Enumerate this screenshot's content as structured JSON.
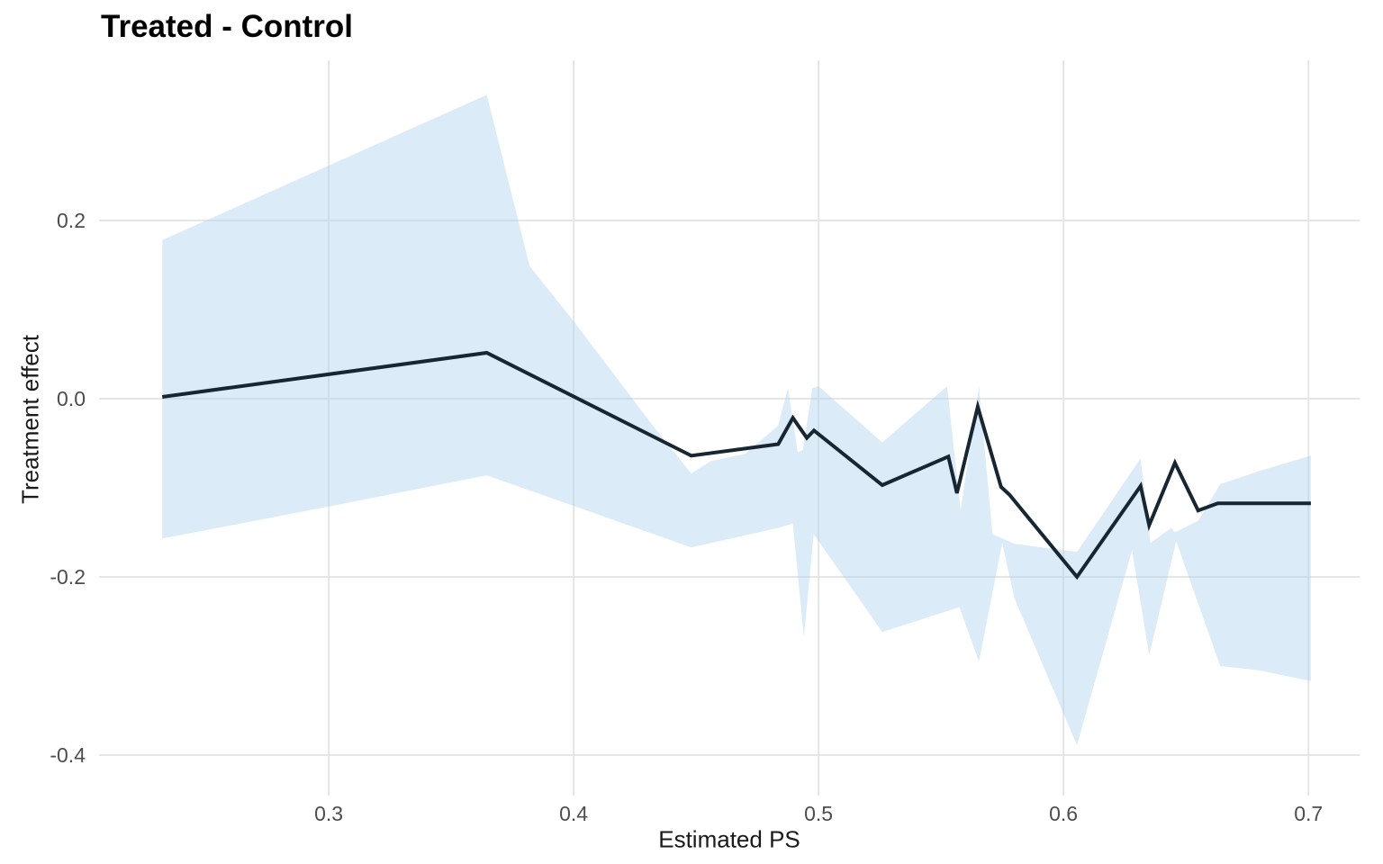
{
  "chart_data": {
    "type": "line",
    "title": "Treated - Control",
    "xlabel": "Estimated PS",
    "ylabel": "Treatment effect",
    "legend": "none",
    "grid": "major-only",
    "xlim": [
      0.2062,
      0.7209
    ],
    "ylim": [
      -0.4455,
      0.3798
    ],
    "x_ticks": {
      "values": [
        0.3,
        0.4,
        0.5,
        0.6,
        0.7
      ],
      "labels": [
        "0.3",
        "0.4",
        "0.5",
        "0.6",
        "0.7"
      ]
    },
    "y_ticks": {
      "values": [
        0.2,
        0.0,
        -0.2,
        -0.4
      ],
      "labels": [
        "0.2",
        "0.0",
        "-0.2",
        "-0.4"
      ]
    },
    "series": [
      {
        "name": "treatment-effect-estimate",
        "type": "line",
        "points": [
          [
            0.232,
            0.002
          ],
          [
            0.3645,
            0.0515
          ],
          [
            0.448,
            -0.064
          ],
          [
            0.4835,
            -0.051
          ],
          [
            0.4895,
            -0.0215
          ],
          [
            0.4952,
            -0.0441
          ],
          [
            0.4981,
            -0.0357
          ],
          [
            0.526,
            -0.097
          ],
          [
            0.553,
            -0.065
          ],
          [
            0.5565,
            -0.106
          ],
          [
            0.565,
            -0.009
          ],
          [
            0.5745,
            -0.099
          ],
          [
            0.578,
            -0.108
          ],
          [
            0.6055,
            -0.2
          ],
          [
            0.6315,
            -0.098
          ],
          [
            0.635,
            -0.142
          ],
          [
            0.6455,
            -0.072
          ],
          [
            0.655,
            -0.1255
          ],
          [
            0.663,
            -0.1175
          ],
          [
            0.701,
            -0.1175
          ]
        ]
      },
      {
        "name": "confidence-band",
        "type": "ribbon",
        "upper": [
          [
            0.232,
            0.178
          ],
          [
            0.3645,
            0.341
          ],
          [
            0.382,
            0.149
          ],
          [
            0.4,
            0.087
          ],
          [
            0.432,
            -0.029
          ],
          [
            0.448,
            -0.084
          ],
          [
            0.456,
            -0.07
          ],
          [
            0.47,
            -0.062
          ],
          [
            0.4835,
            -0.03
          ],
          [
            0.4875,
            0.012
          ],
          [
            0.4915,
            -0.06
          ],
          [
            0.4935,
            -0.058
          ],
          [
            0.4975,
            0.012
          ],
          [
            0.5,
            0.014
          ],
          [
            0.526,
            -0.049
          ],
          [
            0.5525,
            0.014
          ],
          [
            0.558,
            -0.125
          ],
          [
            0.5655,
            0.013
          ],
          [
            0.571,
            -0.152
          ],
          [
            0.58,
            -0.163
          ],
          [
            0.6055,
            -0.172
          ],
          [
            0.6315,
            -0.067
          ],
          [
            0.6355,
            -0.162
          ],
          [
            0.644,
            -0.145
          ],
          [
            0.6455,
            -0.15
          ],
          [
            0.655,
            -0.137
          ],
          [
            0.664,
            -0.096
          ],
          [
            0.68,
            -0.081
          ],
          [
            0.701,
            -0.064
          ]
        ],
        "lower": [
          [
            0.232,
            -0.157
          ],
          [
            0.3,
            -0.121
          ],
          [
            0.3645,
            -0.086
          ],
          [
            0.448,
            -0.167
          ],
          [
            0.4835,
            -0.145
          ],
          [
            0.4895,
            -0.14
          ],
          [
            0.494,
            -0.268
          ],
          [
            0.498,
            -0.152
          ],
          [
            0.526,
            -0.262
          ],
          [
            0.5575,
            -0.234
          ],
          [
            0.5655,
            -0.295
          ],
          [
            0.575,
            -0.162
          ],
          [
            0.58,
            -0.224
          ],
          [
            0.6055,
            -0.389
          ],
          [
            0.628,
            -0.17
          ],
          [
            0.635,
            -0.288
          ],
          [
            0.646,
            -0.16
          ],
          [
            0.664,
            -0.3
          ],
          [
            0.68,
            -0.305
          ],
          [
            0.701,
            -0.317
          ]
        ]
      }
    ],
    "colors": {
      "line": "#182631",
      "ribbon_fill": "rgba(177,211,239,0.45)",
      "gridline": "#e6e6e6",
      "tick_text": "#4d4d4d",
      "axis_title_text": "#1a1a1a",
      "title_text": "#000000",
      "background": "#ffffff"
    }
  }
}
